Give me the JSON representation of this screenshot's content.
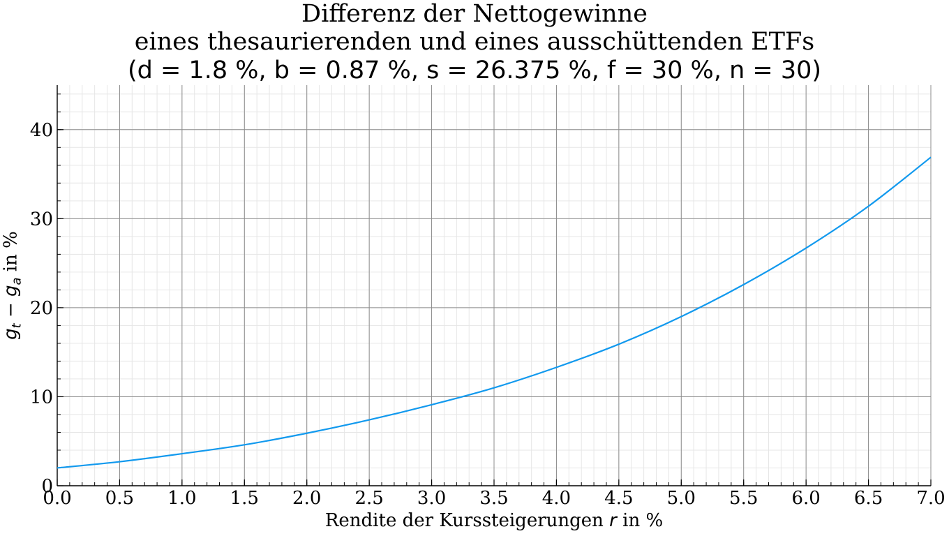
{
  "title": {
    "line1": "Differenz der Nettogewinne",
    "line2": "eines thesaurierenden und eines ausschüttenden ETFs",
    "line3": "(d = 1.8 %, b = 0.87 %, s = 26.375 %, f = 30 %, n = 30)"
  },
  "axes": {
    "xlabel_prefix": "Rendite der Kurssteigerungen ",
    "xlabel_var": "r",
    "xlabel_suffix": " in %",
    "ylabel_var": "g",
    "ylabel_sub1": "t",
    "ylabel_minus": " − ",
    "ylabel_sub2": "a",
    "ylabel_suffix": " in %"
  },
  "chart_data": {
    "type": "line",
    "xlabel": "Rendite der Kurssteigerungen r in %",
    "ylabel": "g_t − g_a in %",
    "xlim": [
      0,
      7
    ],
    "ylim": [
      0,
      45
    ],
    "x_ticks": [
      "0.0",
      "0.5",
      "1.0",
      "1.5",
      "2.0",
      "2.5",
      "3.0",
      "3.5",
      "4.0",
      "4.5",
      "5.0",
      "5.5",
      "6.0",
      "6.5",
      "7.0"
    ],
    "y_ticks": [
      "0",
      "10",
      "20",
      "30",
      "40"
    ],
    "grid": true,
    "line_color": "#1199ee",
    "x": [
      0.0,
      0.5,
      1.0,
      1.5,
      2.0,
      2.5,
      3.0,
      3.5,
      4.0,
      4.5,
      5.0,
      5.5,
      6.0,
      6.5,
      7.0
    ],
    "values": [
      2.0,
      2.7,
      3.6,
      4.6,
      5.9,
      7.4,
      9.1,
      11.0,
      13.3,
      15.9,
      19.0,
      22.6,
      26.7,
      31.4,
      36.9
    ]
  }
}
